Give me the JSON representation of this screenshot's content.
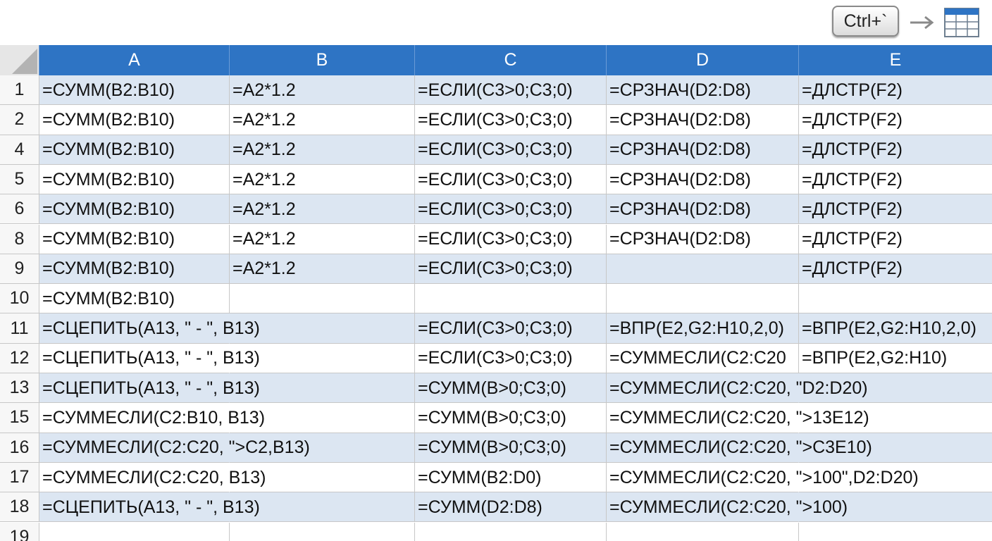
{
  "header": {
    "key": "Ctrl+`"
  },
  "table": {
    "columns": [
      "A",
      "B",
      "C",
      "D",
      "E"
    ],
    "rows": [
      {
        "label": "1",
        "cells": [
          "=СУММ(B2:B10)",
          "=A2*1.2",
          "=ЕСЛИ(C3>0;C3;0)",
          "=СРЗНАЧ(D2:D8)",
          "=ДЛСТР(F2)"
        ]
      },
      {
        "label": "2",
        "cells": [
          "=СУММ(B2:B10)",
          "=A2*1.2",
          "=ЕСЛИ(C3>0;C3;0)",
          "=СРЗНАЧ(D2:D8)",
          "=ДЛСТР(F2)"
        ]
      },
      {
        "label": "4",
        "cells": [
          "=СУММ(B2:B10)",
          "=A2*1.2",
          "=ЕСЛИ(C3>0;C3;0)",
          "=СРЗНАЧ(D2:D8)",
          "=ДЛСТР(F2)"
        ]
      },
      {
        "label": "5",
        "cells": [
          "=СУММ(B2:B10)",
          "=A2*1.2",
          "=ЕСЛИ(C3>0;C3;0)",
          "=СРЗНАЧ(D2:D8)",
          "=ДЛСТР(F2)"
        ]
      },
      {
        "label": "6",
        "cells": [
          "=СУММ(B2:B10)",
          "=A2*1.2",
          "=ЕСЛИ(C3>0;C3;0)",
          "=СРЗНАЧ(D2:D8)",
          "=ДЛСТР(F2)"
        ]
      },
      {
        "label": "8",
        "cells": [
          "=СУММ(B2:B10)",
          "=A2*1.2",
          "=ЕСЛИ(C3>0;C3;0)",
          "=СРЗНАЧ(D2:D8)",
          "=ДЛСТР(F2)"
        ]
      },
      {
        "label": "9",
        "cells": [
          "=СУММ(B2:B10)",
          "=A2*1.2",
          "=ЕСЛИ(C3>0;C3;0)",
          null,
          "=ДЛСТР(F2)"
        ]
      },
      {
        "label": "10",
        "cells": [
          "=СУММ(B2:B10)",
          null,
          null,
          null,
          null
        ]
      },
      {
        "label": "11",
        "cells": [
          "=СЦЕПИТЬ(A13, \" - \", B13)",
          null,
          "=ЕСЛИ(C3>0;C3;0)",
          "=ВПР(E2,G2:H10,2,0)",
          "=ВПР(E2,G2:H10,2,0)"
        ]
      },
      {
        "label": "12",
        "cells": [
          "=СЦЕПИТЬ(A13, \" - \", B13)",
          null,
          "=ЕСЛИ(C3>0;C3;0)",
          "=СУММЕСЛИ(C2:C20",
          "=ВПР(E2,G2:H10)"
        ]
      },
      {
        "label": "13",
        "cells": [
          "=СЦЕПИТЬ(A13, \" - \", B13)",
          null,
          "=СУММ(B>0;C3;0)",
          "=СУММЕСЛИ(C2:C20, \"D2:D20)",
          null
        ]
      },
      {
        "label": "15",
        "cells": [
          "=СУММЕСЛИ(C2:B10, B13)",
          null,
          "=СУММ(B>0;C3;0)",
          "=СУММЕСЛИ(C2:C20, \">13E12)",
          null
        ]
      },
      {
        "label": "16",
        "cells": [
          "=СУММЕСЛИ(C2:C20, \">C2,B13)",
          null,
          "=СУММ(B>0;C3;0)",
          "=СУММЕСЛИ(C2:C20, \">C3E10)",
          null
        ]
      },
      {
        "label": "17",
        "cells": [
          "=СУММЕСЛИ(C2:C20, B13)",
          null,
          "=СУММ(B2:D0)",
          "=СУММЕСЛИ(C2:C20, \">100\",D2:D20)",
          null
        ]
      },
      {
        "label": "18",
        "cells": [
          "=СЦЕПИТЬ(A13, \" - \", B13)",
          null,
          "=СУММ(D2:D8)",
          "=СУММЕСЛИ(C2:C20, \">100)",
          null
        ]
      },
      {
        "label": "19",
        "cells": [
          null,
          null,
          null,
          null,
          null
        ]
      }
    ]
  }
}
